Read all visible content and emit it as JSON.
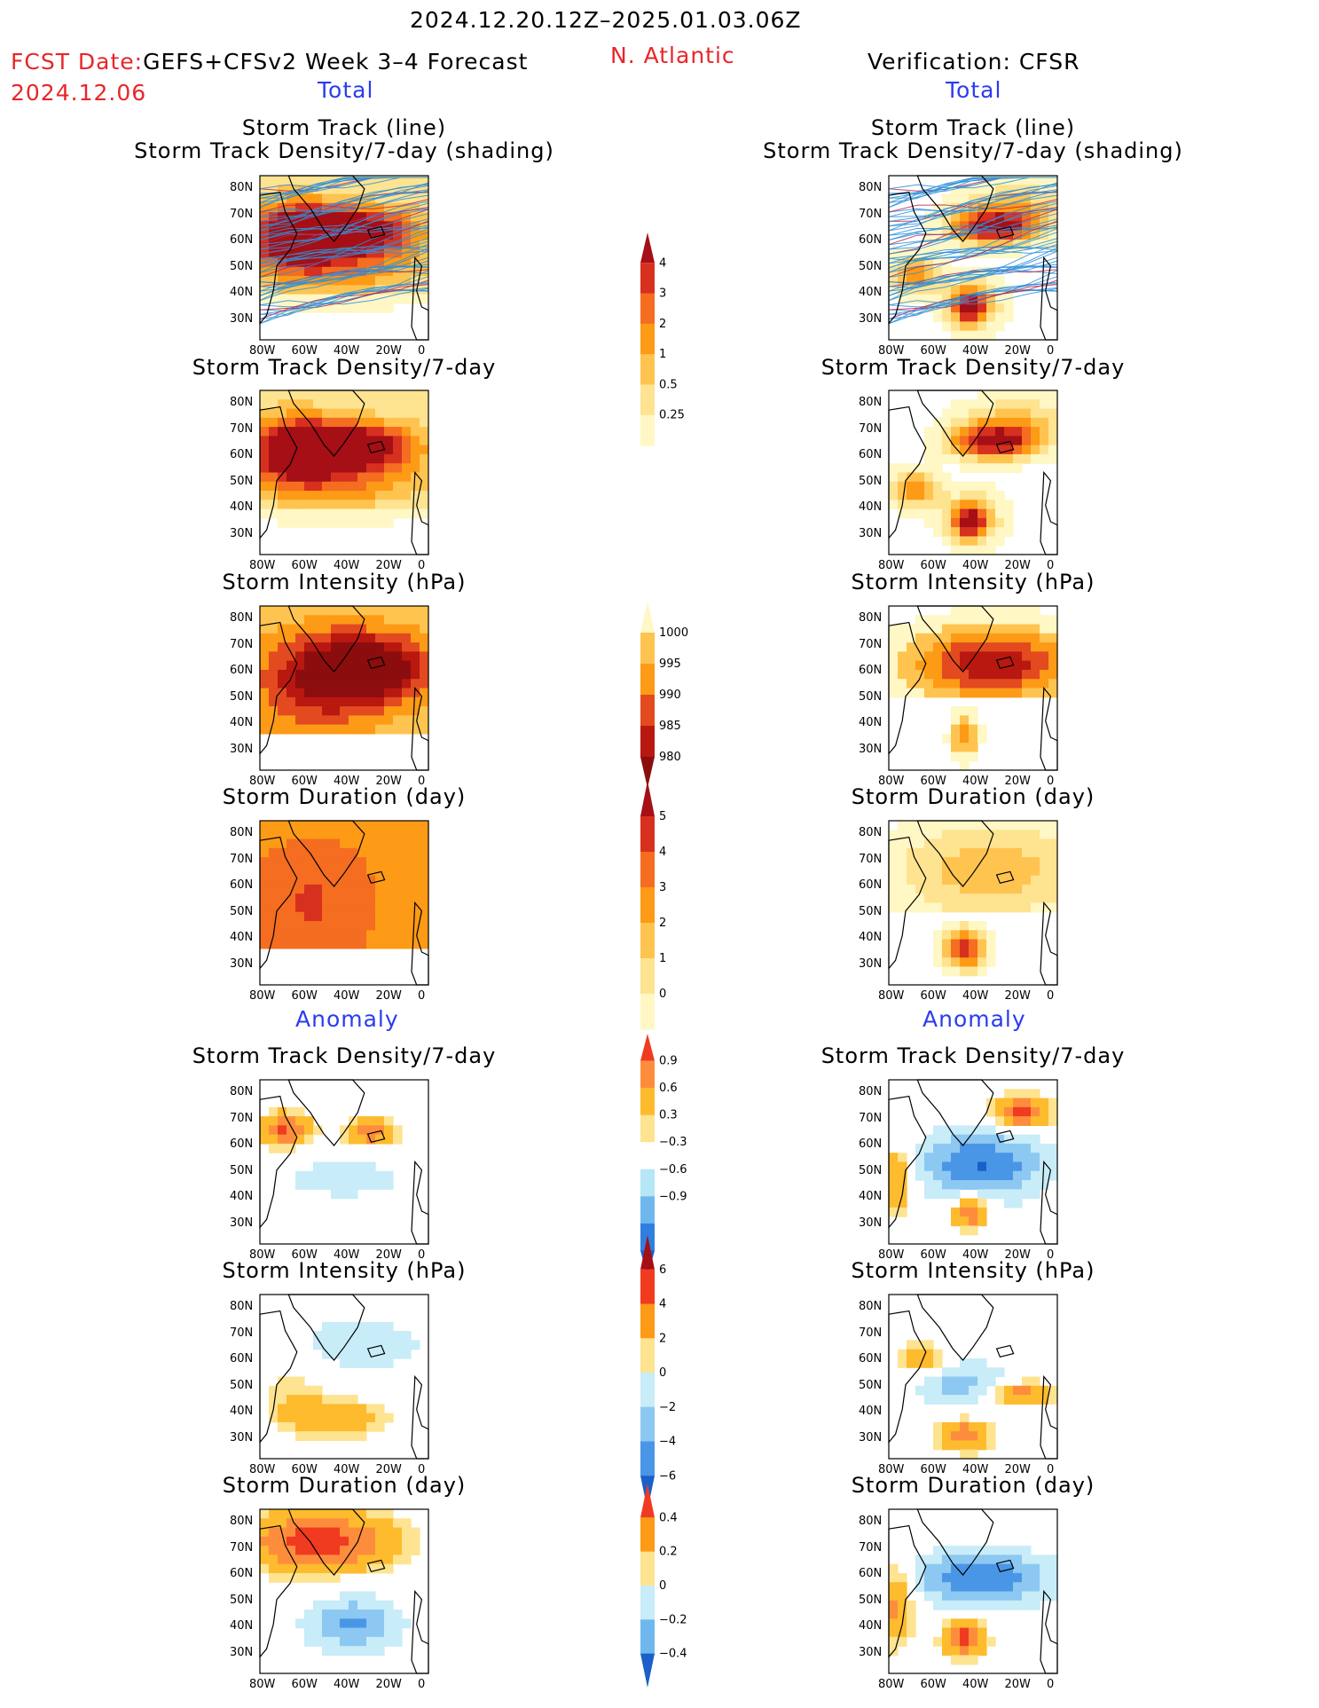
{
  "header": {
    "date_range": "2024.12.20.12Z–2025.01.03.06Z",
    "fcst_label": "FCST Date:",
    "forecast_name": "GEFS+CFSv2 Week 3–4 Forecast",
    "region": "N. Atlantic",
    "verification": "Verification: CFSR",
    "fcst_date": "2024.12.06"
  },
  "sections": {
    "total": "Total",
    "anomaly": "Anomaly"
  },
  "panel_titles": {
    "track_line": "Storm Track (line)",
    "track_shading": "Storm Track Density/7-day (shading)",
    "density": "Storm Track Density/7-day",
    "intensity": "Storm Intensity (hPa)",
    "duration": "Storm Duration (day)"
  },
  "axes": {
    "lat_labels": [
      "80N",
      "70N",
      "60N",
      "50N",
      "40N",
      "30N"
    ],
    "lon_labels": [
      "80W",
      "60W",
      "40W",
      "20W",
      "0"
    ]
  },
  "colorbars": {
    "density_total": {
      "labels": [
        "4",
        "3",
        "2",
        "1",
        "0.5",
        "0.25"
      ],
      "colors": [
        "#a50f15",
        "#d7301f",
        "#f46d20",
        "#fd9a16",
        "#fec44f",
        "#fee391",
        "#fff7c4"
      ]
    },
    "intensity_total": {
      "labels": [
        "1000",
        "995",
        "990",
        "985",
        "980"
      ],
      "colors": [
        "#fff7c4",
        "#fec44f",
        "#fd9a16",
        "#e34a1f",
        "#b8180f",
        "#8c0d0d"
      ]
    },
    "duration_total": {
      "labels": [
        "5",
        "4",
        "3",
        "2",
        "1",
        "0"
      ],
      "colors": [
        "#a50f15",
        "#d7301f",
        "#f46d20",
        "#fd9a16",
        "#fec44f",
        "#fee391",
        "#fff7c4"
      ]
    },
    "density_anom": {
      "labels": [
        "0.9",
        "0.6",
        "0.3",
        "−0.3",
        "−0.6",
        "−0.9"
      ],
      "colors": [
        "#f03b20",
        "#fd8d3c",
        "#fdbb2d",
        "#fee391",
        "#ffffff",
        "#b7e6f6",
        "#6fb8ee",
        "#2f7fe0",
        "#1b5fc8"
      ]
    },
    "intensity_anom": {
      "labels": [
        "6",
        "4",
        "2",
        "0",
        "−2",
        "−4",
        "−6"
      ],
      "colors": [
        "#a50f15",
        "#f03b20",
        "#fd9a16",
        "#fee391",
        "#c8ecf8",
        "#8cc8f2",
        "#4a96e6",
        "#1b5fc8"
      ]
    },
    "duration_anom": {
      "labels": [
        "0.4",
        "0.2",
        "0",
        "−0.2",
        "−0.4"
      ],
      "colors": [
        "#f03b20",
        "#fd9a16",
        "#fee391",
        "#c8ecf8",
        "#6fb8ee",
        "#1b5fc8"
      ]
    }
  }
}
